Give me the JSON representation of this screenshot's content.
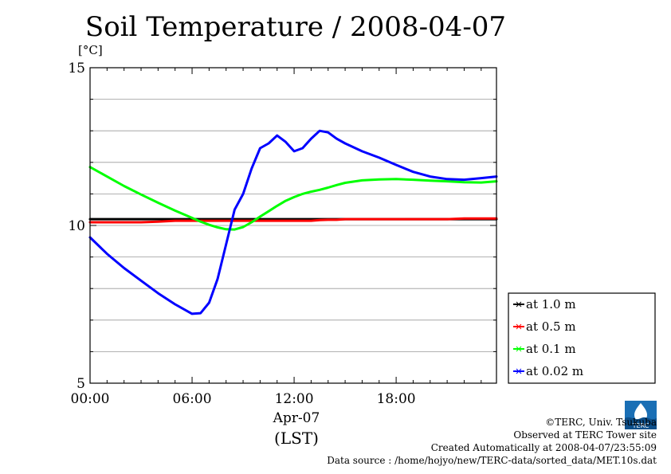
{
  "header": {
    "title": "Soil Temperature / 2008-04-07",
    "unit": "[°C]"
  },
  "chart_data": {
    "type": "line",
    "title": "Soil Temperature / 2008-04-07",
    "ylabel": "[°C]",
    "xlabel": "(LST)",
    "x_date_label": "Apr-07",
    "xlim": [
      0,
      23.9
    ],
    "ylim": [
      5,
      15
    ],
    "x_ticks": [
      0,
      6,
      12,
      18
    ],
    "x_tick_labels": [
      "00:00",
      "06:00",
      "12:00",
      "18:00"
    ],
    "y_ticks": [
      5,
      10,
      15
    ],
    "y_tick_labels": [
      "5",
      "10",
      "15"
    ],
    "grid": "horizontal",
    "legend_position": "bottom-right",
    "x": [
      0,
      1,
      2,
      3,
      4,
      5,
      6,
      6.5,
      7,
      7.5,
      8,
      8.5,
      9,
      9.5,
      10,
      10.5,
      11,
      11.5,
      12,
      12.5,
      13,
      13.5,
      14,
      14.5,
      15,
      16,
      17,
      18,
      19,
      20,
      21,
      22,
      23,
      23.9
    ],
    "series": [
      {
        "name": "at 1.0 m",
        "color": "#000000",
        "values": [
          10.2,
          10.2,
          10.2,
          10.2,
          10.2,
          10.2,
          10.2,
          10.2,
          10.2,
          10.2,
          10.2,
          10.2,
          10.2,
          10.2,
          10.2,
          10.2,
          10.2,
          10.2,
          10.2,
          10.2,
          10.2,
          10.2,
          10.2,
          10.2,
          10.2,
          10.2,
          10.2,
          10.2,
          10.2,
          10.2,
          10.2,
          10.2,
          10.2,
          10.2
        ]
      },
      {
        "name": "at 0.5 m",
        "color": "#ff0000",
        "values": [
          10.1,
          10.1,
          10.1,
          10.1,
          10.12,
          10.15,
          10.15,
          10.15,
          10.15,
          10.15,
          10.15,
          10.15,
          10.15,
          10.15,
          10.15,
          10.15,
          10.15,
          10.15,
          10.15,
          10.15,
          10.15,
          10.17,
          10.18,
          10.18,
          10.2,
          10.2,
          10.2,
          10.2,
          10.2,
          10.2,
          10.2,
          10.22,
          10.22,
          10.22
        ]
      },
      {
        "name": "at 0.1 m",
        "color": "#00ff00",
        "values": [
          11.85,
          11.55,
          11.25,
          10.98,
          10.72,
          10.47,
          10.24,
          10.12,
          10.02,
          9.94,
          9.88,
          9.87,
          9.95,
          10.1,
          10.28,
          10.45,
          10.62,
          10.78,
          10.9,
          11.0,
          11.07,
          11.13,
          11.2,
          11.28,
          11.35,
          11.43,
          11.46,
          11.47,
          11.45,
          11.42,
          11.4,
          11.37,
          11.36,
          11.4
        ]
      },
      {
        "name": "at 0.02 m",
        "color": "#0000ff",
        "values": [
          9.62,
          9.1,
          8.65,
          8.25,
          7.85,
          7.5,
          7.2,
          7.22,
          7.55,
          8.3,
          9.4,
          10.5,
          11.0,
          11.8,
          12.45,
          12.6,
          12.85,
          12.65,
          12.35,
          12.45,
          12.75,
          13.0,
          12.95,
          12.75,
          12.6,
          12.35,
          12.15,
          11.92,
          11.7,
          11.55,
          11.47,
          11.45,
          11.5,
          11.55
        ]
      }
    ]
  },
  "footer": {
    "copyright": "©TERC, Univ. Tsukuba",
    "observed": "Observed at TERC Tower site",
    "created": "Created Automatically at 2008-04-07/23:55:09",
    "source": "Data source : /home/hojyo/new/TERC-data/sorted_data/MET.10s.dat",
    "logo_text": "TERC"
  },
  "colors": {
    "axis": "#000000",
    "grid": "#999999",
    "background": "#ffffff"
  }
}
